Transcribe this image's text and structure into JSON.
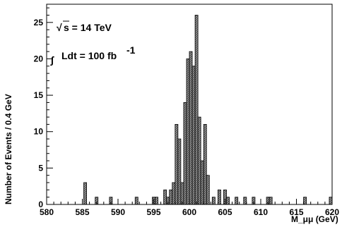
{
  "chart_data": {
    "type": "bar",
    "title": "",
    "xlabel": "M_μμ (GeV)",
    "ylabel": "Number of Events / 0.4 GeV",
    "xlim": [
      580,
      620
    ],
    "ylim": [
      0,
      27.5
    ],
    "bin_width": 0.4,
    "x_ticks": [
      580,
      585,
      590,
      595,
      600,
      605,
      610,
      615,
      620
    ],
    "y_ticks": [
      0,
      5,
      10,
      15,
      20,
      25
    ],
    "grid": false,
    "fill": "hatched-grey",
    "bins": [
      {
        "x": 585.2,
        "value": 3
      },
      {
        "x": 586.8,
        "value": 1
      },
      {
        "x": 588.8,
        "value": 1
      },
      {
        "x": 592.4,
        "value": 1
      },
      {
        "x": 594.8,
        "value": 1
      },
      {
        "x": 595.2,
        "value": 1
      },
      {
        "x": 596.4,
        "value": 2
      },
      {
        "x": 596.8,
        "value": 1
      },
      {
        "x": 597.2,
        "value": 2
      },
      {
        "x": 597.6,
        "value": 3
      },
      {
        "x": 598.0,
        "value": 11
      },
      {
        "x": 598.4,
        "value": 9
      },
      {
        "x": 598.8,
        "value": 3
      },
      {
        "x": 599.2,
        "value": 14
      },
      {
        "x": 599.6,
        "value": 20
      },
      {
        "x": 600.0,
        "value": 21
      },
      {
        "x": 600.4,
        "value": 19
      },
      {
        "x": 600.8,
        "value": 26
      },
      {
        "x": 601.2,
        "value": 12
      },
      {
        "x": 601.6,
        "value": 6
      },
      {
        "x": 602.0,
        "value": 11
      },
      {
        "x": 602.4,
        "value": 4
      },
      {
        "x": 603.2,
        "value": 1
      },
      {
        "x": 604.0,
        "value": 2
      },
      {
        "x": 604.8,
        "value": 2
      },
      {
        "x": 605.2,
        "value": 1
      },
      {
        "x": 606.4,
        "value": 1
      },
      {
        "x": 607.6,
        "value": 1
      },
      {
        "x": 608.8,
        "value": 1
      },
      {
        "x": 610.8,
        "value": 1
      },
      {
        "x": 611.2,
        "value": 1
      },
      {
        "x": 616.0,
        "value": 1
      },
      {
        "x": 619.6,
        "value": 1
      }
    ],
    "annotations": {
      "sqrt": "√",
      "energy": "s = 14 TeV",
      "integral": "∫",
      "lumi": "Ldt = 100 fb",
      "lumi_exp": "-1"
    }
  }
}
